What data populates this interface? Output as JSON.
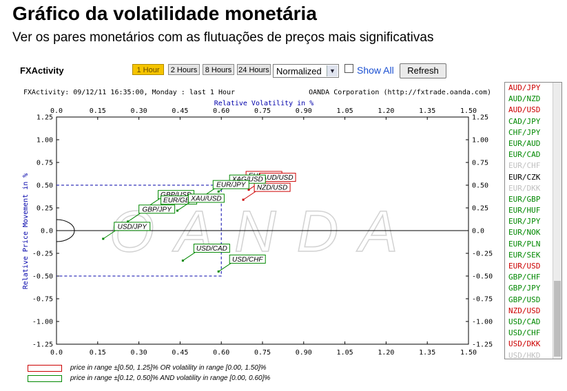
{
  "page": {
    "title": "Gráfico da volatilidade monetária",
    "subtitle": "Ver os pares monetários com as flutuações de preços mais significativas"
  },
  "toolbar": {
    "label": "FXActivity",
    "time_buttons": [
      "1 Hour",
      "2 Hours",
      "8 Hours",
      "24 Hours"
    ],
    "active_time": "1 Hour",
    "mode_value": "Normalized",
    "show_all_label": "Show All",
    "refresh_label": "Refresh"
  },
  "colors": {
    "red": "#cc0000",
    "green": "#008800",
    "blue": "#0000aa",
    "disabled": "#c0c0c0"
  },
  "chart_data": {
    "type": "scatter",
    "header_left": "FXActivity: 09/12/11 16:35:00, Monday : last 1 Hour",
    "header_right": "OANDA Corporation (http://fxtrade.oanda.com)",
    "watermark": "OANDA",
    "xlabel": "Relative Volatility in %",
    "ylabel": "Relative Price Movement in %",
    "xlim": [
      0,
      1.5
    ],
    "ylim": [
      -1.25,
      1.25
    ],
    "x_ticks": [
      "0.0",
      "0.15",
      "0.30",
      "0.45",
      "0.60",
      "0.75",
      "0.90",
      "1.05",
      "1.20",
      "1.35",
      "1.50"
    ],
    "y_ticks": [
      "1.25",
      "1.00",
      "0.75",
      "0.50",
      "0.25",
      "0.0",
      "-0.25",
      "-0.50",
      "-0.75",
      "-1.00",
      "-1.25"
    ],
    "ref_box": {
      "x": [
        0,
        0.6
      ],
      "y": [
        -0.5,
        0.5
      ]
    },
    "points": [
      {
        "name": "EUR/USD",
        "x": 0.65,
        "y": 0.47,
        "group": "red"
      },
      {
        "name": "AUD/USD",
        "x": 0.7,
        "y": 0.45,
        "group": "red"
      },
      {
        "name": "NZD/USD",
        "x": 0.68,
        "y": 0.34,
        "group": "red"
      },
      {
        "name": "XAG/USD",
        "x": 0.59,
        "y": 0.43,
        "group": "green"
      },
      {
        "name": "EUR/JPY",
        "x": 0.53,
        "y": 0.37,
        "group": "green"
      },
      {
        "name": "GBP/USD",
        "x": 0.33,
        "y": 0.26,
        "group": "green"
      },
      {
        "name": "EUR/GBP",
        "x": 0.34,
        "y": 0.2,
        "group": "green"
      },
      {
        "name": "XAU/USD",
        "x": 0.44,
        "y": 0.22,
        "group": "green"
      },
      {
        "name": "GBP/JPY",
        "x": 0.26,
        "y": 0.1,
        "group": "green"
      },
      {
        "name": "USD/JPY",
        "x": 0.17,
        "y": -0.09,
        "group": "green"
      },
      {
        "name": "USD/CAD",
        "x": 0.46,
        "y": -0.33,
        "group": "green"
      },
      {
        "name": "USD/CHF",
        "x": 0.59,
        "y": -0.45,
        "group": "green"
      }
    ],
    "legend": [
      {
        "group": "red",
        "text": "price in range ±[0.50, 1.25]% OR volatility in range [0.00, 1.50]%"
      },
      {
        "group": "green",
        "text": "price in range ±[0.12, 0.50]% AND volatility in range [0.00, 0.60]%"
      }
    ]
  },
  "pair_list": [
    {
      "name": "AUD/JPY",
      "status": "red"
    },
    {
      "name": "AUD/NZD",
      "status": "green"
    },
    {
      "name": "AUD/USD",
      "status": "red"
    },
    {
      "name": "CAD/JPY",
      "status": "green"
    },
    {
      "name": "CHF/JPY",
      "status": "green"
    },
    {
      "name": "EUR/AUD",
      "status": "green"
    },
    {
      "name": "EUR/CAD",
      "status": "green"
    },
    {
      "name": "EUR/CHF",
      "status": "disabled"
    },
    {
      "name": "EUR/CZK",
      "status": "black"
    },
    {
      "name": "EUR/DKK",
      "status": "disabled"
    },
    {
      "name": "EUR/GBP",
      "status": "green"
    },
    {
      "name": "EUR/HUF",
      "status": "green"
    },
    {
      "name": "EUR/JPY",
      "status": "green"
    },
    {
      "name": "EUR/NOK",
      "status": "green"
    },
    {
      "name": "EUR/PLN",
      "status": "green"
    },
    {
      "name": "EUR/SEK",
      "status": "green"
    },
    {
      "name": "EUR/USD",
      "status": "red"
    },
    {
      "name": "GBP/CHF",
      "status": "green"
    },
    {
      "name": "GBP/JPY",
      "status": "green"
    },
    {
      "name": "GBP/USD",
      "status": "green"
    },
    {
      "name": "NZD/USD",
      "status": "red"
    },
    {
      "name": "USD/CAD",
      "status": "green"
    },
    {
      "name": "USD/CHF",
      "status": "green"
    },
    {
      "name": "USD/DKK",
      "status": "red"
    },
    {
      "name": "USD/HKD",
      "status": "disabled"
    }
  ]
}
